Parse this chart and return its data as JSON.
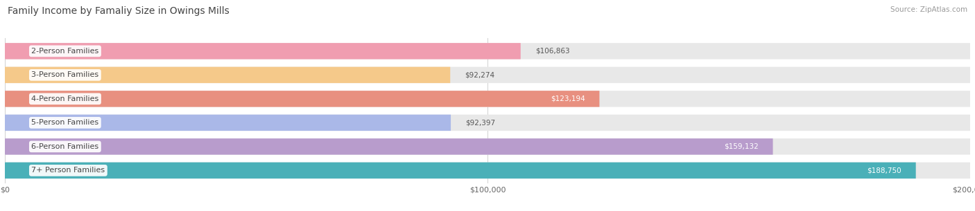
{
  "title": "Family Income by Famaliy Size in Owings Mills",
  "source": "Source: ZipAtlas.com",
  "categories": [
    "2-Person Families",
    "3-Person Families",
    "4-Person Families",
    "5-Person Families",
    "6-Person Families",
    "7+ Person Families"
  ],
  "values": [
    106863,
    92274,
    123194,
    92397,
    159132,
    188750
  ],
  "bar_colors": [
    "#f09db0",
    "#f5c98a",
    "#e89080",
    "#aab8e8",
    "#b89ccc",
    "#4ab0b8"
  ],
  "value_label_inside": [
    false,
    false,
    true,
    false,
    true,
    true
  ],
  "value_labels": [
    "$106,863",
    "$92,274",
    "$123,194",
    "$92,397",
    "$159,132",
    "$188,750"
  ],
  "xlim": [
    0,
    200000
  ],
  "xticks": [
    0,
    100000,
    200000
  ],
  "xtick_labels": [
    "$0",
    "$100,000",
    "$200,000"
  ],
  "bg_color": "#ffffff",
  "bar_track_color": "#e8e8e8",
  "title_fontsize": 10,
  "source_fontsize": 7.5,
  "label_fontsize": 8,
  "value_fontsize": 7.5,
  "bar_height": 0.68,
  "figsize": [
    14.06,
    3.05
  ]
}
